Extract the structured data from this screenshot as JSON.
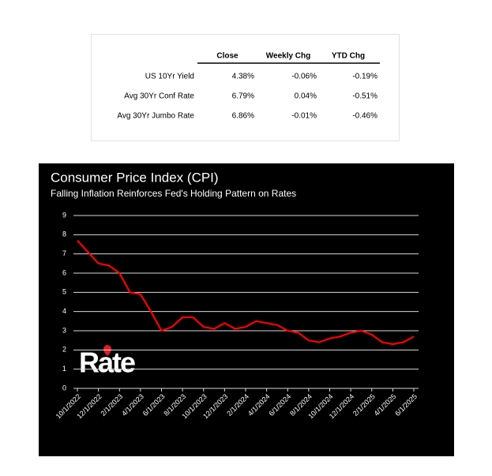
{
  "table": {
    "columns": [
      "Close",
      "Weekly Chg",
      "YTD Chg"
    ],
    "rows": [
      {
        "label": "US 10Yr Yield",
        "values": [
          "4.38%",
          "-0.06%",
          "-0.19%"
        ]
      },
      {
        "label": "Avg 30Yr Conf Rate",
        "values": [
          "6.79%",
          "0.04%",
          "-0.51%"
        ]
      },
      {
        "label": "Avg 30Yr Jumbo Rate",
        "values": [
          "6.86%",
          "-0.01%",
          "-0.46%"
        ]
      }
    ]
  },
  "chart_data": {
    "type": "line",
    "title": "Consumer Price Index (CPI)",
    "subtitle": "Falling Inflation Reinforces Fed's Holding Pattern on Rates",
    "logo_text": "Rate",
    "categories": [
      "10/1/2022",
      null,
      "12/1/2022",
      null,
      "2/1/2023",
      null,
      "4/1/2023",
      null,
      "6/1/2023",
      null,
      "8/1/2023",
      null,
      "10/1/2023",
      null,
      "12/1/2023",
      null,
      "2/1/2024",
      null,
      "4/1/2024",
      null,
      "6/1/2024",
      null,
      "8/1/2024",
      null,
      "10/1/2024",
      null,
      "12/1/2024",
      null,
      "2/1/2025",
      null,
      "4/1/2025",
      null,
      "6/1/2025"
    ],
    "values": [
      7.7,
      7.1,
      6.5,
      6.4,
      6.0,
      5.0,
      4.9,
      4.0,
      3.0,
      3.2,
      3.7,
      3.7,
      3.2,
      3.1,
      3.4,
      3.1,
      3.2,
      3.5,
      3.4,
      3.3,
      3.0,
      2.9,
      2.5,
      2.4,
      2.6,
      2.7,
      2.9,
      3.0,
      2.8,
      2.4,
      2.3,
      2.4,
      2.7
    ],
    "color": "#ff0000",
    "ylim": [
      0,
      9
    ],
    "yticks": [
      0,
      1,
      2,
      3,
      4,
      5,
      6,
      7,
      8,
      9
    ],
    "grid": true
  }
}
